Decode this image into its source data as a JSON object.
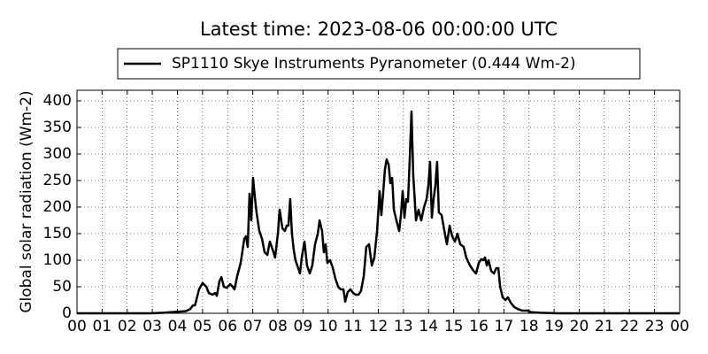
{
  "chart_data": {
    "type": "line",
    "title": "Latest time: 2023-08-06 00:00:00 UTC",
    "y_label": "Global solar radiation (Wm-2)",
    "xlim": [
      0,
      24
    ],
    "ylim": [
      0,
      420
    ],
    "xticks": [
      {
        "value": 0,
        "label": "00"
      },
      {
        "value": 1,
        "label": "01"
      },
      {
        "value": 2,
        "label": "02"
      },
      {
        "value": 3,
        "label": "03"
      },
      {
        "value": 4,
        "label": "04"
      },
      {
        "value": 5,
        "label": "05"
      },
      {
        "value": 6,
        "label": "06"
      },
      {
        "value": 7,
        "label": "07"
      },
      {
        "value": 8,
        "label": "08"
      },
      {
        "value": 9,
        "label": "09"
      },
      {
        "value": 10,
        "label": "10"
      },
      {
        "value": 11,
        "label": "11"
      },
      {
        "value": 12,
        "label": "12"
      },
      {
        "value": 13,
        "label": "13"
      },
      {
        "value": 14,
        "label": "14"
      },
      {
        "value": 15,
        "label": "15"
      },
      {
        "value": 16,
        "label": "16"
      },
      {
        "value": 17,
        "label": "17"
      },
      {
        "value": 18,
        "label": "18"
      },
      {
        "value": 19,
        "label": "19"
      },
      {
        "value": 20,
        "label": "20"
      },
      {
        "value": 21,
        "label": "21"
      },
      {
        "value": 22,
        "label": "22"
      },
      {
        "value": 23,
        "label": "23"
      },
      {
        "value": 24,
        "label": "00"
      }
    ],
    "yticks": [
      0,
      50,
      100,
      150,
      200,
      250,
      300,
      350,
      400
    ],
    "grid": true,
    "legend": "top",
    "x": [
      0,
      2.93,
      3.45,
      3.98,
      4.33,
      4.51,
      4.62,
      4.7,
      4.86,
      5.0,
      5.15,
      5.25,
      5.4,
      5.5,
      5.57,
      5.67,
      5.75,
      5.85,
      5.96,
      6.1,
      6.2,
      6.27,
      6.38,
      6.52,
      6.66,
      6.73,
      6.8,
      6.87,
      6.94,
      7.01,
      7.08,
      7.15,
      7.26,
      7.37,
      7.47,
      7.58,
      7.68,
      7.79,
      7.89,
      8.0,
      8.07,
      8.18,
      8.28,
      8.35,
      8.42,
      8.49,
      8.56,
      8.63,
      8.7,
      8.81,
      8.88,
      8.95,
      9.06,
      9.16,
      9.27,
      9.37,
      9.48,
      9.59,
      9.66,
      9.76,
      9.83,
      9.9,
      9.97,
      10.08,
      10.19,
      10.29,
      10.4,
      10.5,
      10.61,
      10.68,
      10.78,
      10.89,
      11.0,
      11.1,
      11.21,
      11.31,
      11.42,
      11.52,
      11.63,
      11.74,
      11.84,
      11.95,
      12.05,
      12.12,
      12.19,
      12.26,
      12.33,
      12.41,
      12.48,
      12.55,
      12.62,
      12.72,
      12.83,
      12.9,
      12.97,
      13.04,
      13.11,
      13.18,
      13.25,
      13.32,
      13.39,
      13.5,
      13.6,
      13.71,
      13.82,
      13.92,
      13.99,
      14.06,
      14.13,
      14.2,
      14.27,
      14.34,
      14.41,
      14.52,
      14.63,
      14.73,
      14.84,
      14.94,
      15.05,
      15.15,
      15.26,
      15.4,
      15.5,
      15.65,
      15.79,
      15.89,
      16.0,
      16.1,
      16.18,
      16.25,
      16.32,
      16.39,
      16.49,
      16.6,
      16.7,
      16.78,
      16.85,
      16.95,
      17.06,
      17.16,
      17.27,
      17.41,
      17.55,
      17.73,
      17.94,
      18.08,
      18.43,
      19.14,
      24
    ],
    "series": [
      {
        "name": "SP1110 Skye Instruments Pyranometer (0.444 Wm-2)",
        "color": "#000000",
        "values": [
          0,
          0,
          1,
          3,
          4,
          8,
          15,
          15,
          45,
          57,
          50,
          38,
          35,
          38,
          33,
          60,
          68,
          50,
          48,
          55,
          50,
          45,
          70,
          95,
          140,
          145,
          125,
          225,
          175,
          255,
          220,
          190,
          155,
          140,
          115,
          110,
          135,
          120,
          105,
          150,
          195,
          160,
          155,
          165,
          165,
          215,
          150,
          120,
          100,
          85,
          75,
          105,
          135,
          90,
          75,
          90,
          130,
          150,
          175,
          155,
          115,
          130,
          95,
          100,
          85,
          65,
          50,
          45,
          45,
          22,
          40,
          45,
          38,
          35,
          35,
          42,
          70,
          125,
          130,
          90,
          105,
          155,
          230,
          185,
          225,
          270,
          290,
          280,
          245,
          255,
          195,
          175,
          155,
          185,
          230,
          180,
          215,
          210,
          290,
          380,
          260,
          175,
          195,
          175,
          200,
          215,
          240,
          285,
          180,
          215,
          240,
          285,
          190,
          185,
          155,
          130,
          165,
          145,
          135,
          150,
          130,
          125,
          105,
          90,
          80,
          75,
          95,
          102,
          100,
          105,
          90,
          100,
          80,
          75,
          85,
          85,
          50,
          30,
          25,
          30,
          20,
          12,
          8,
          5,
          5,
          2,
          1,
          0,
          0
        ]
      }
    ]
  }
}
